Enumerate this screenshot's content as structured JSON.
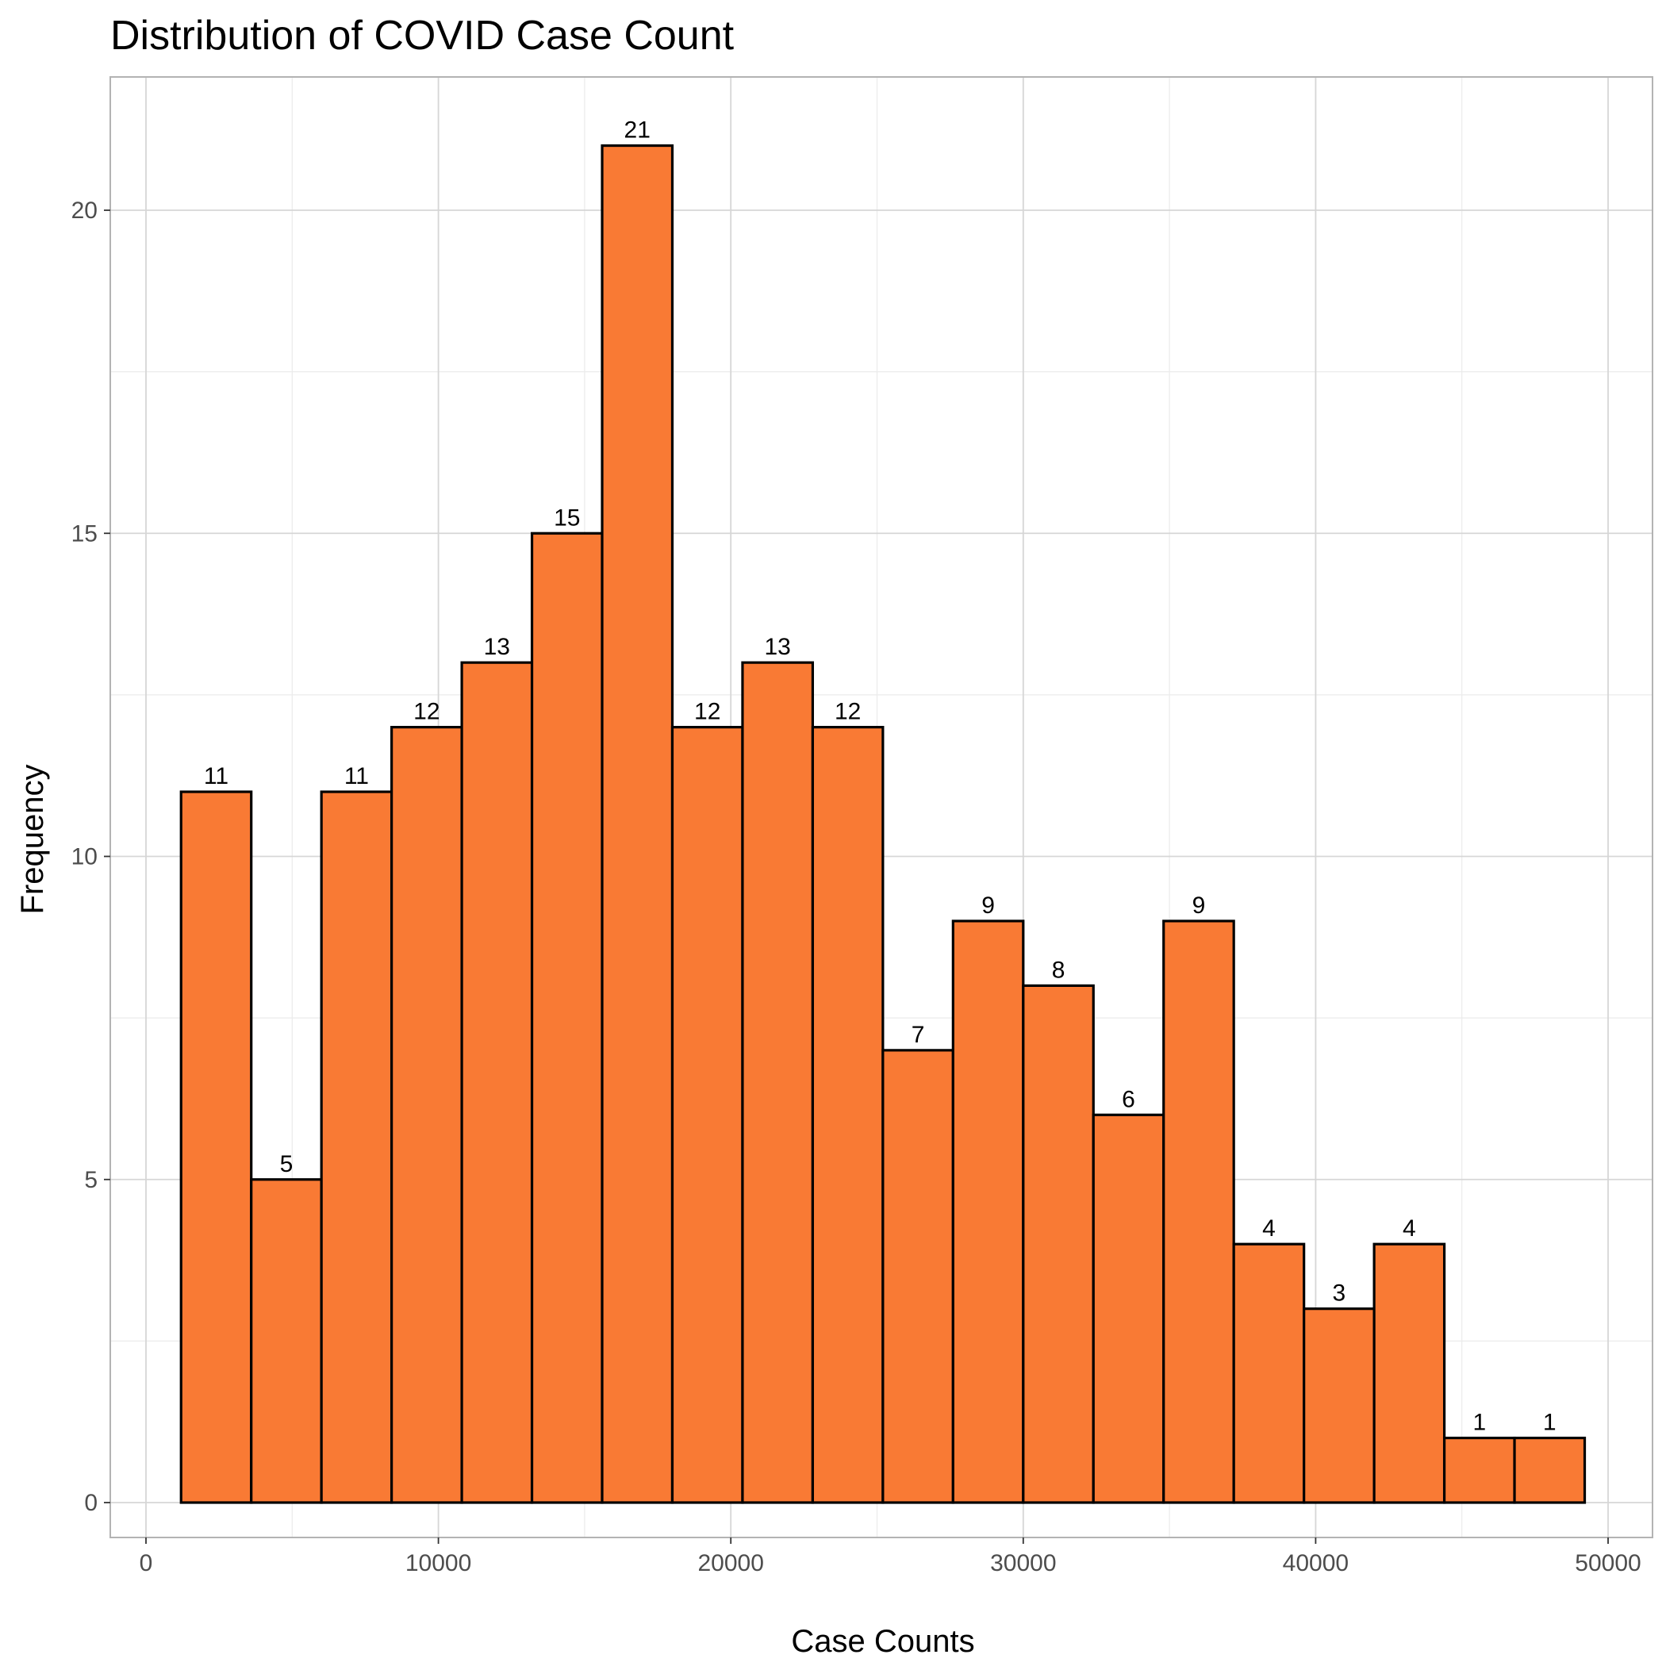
{
  "chart_data": {
    "type": "bar",
    "subtype": "histogram",
    "title": "Distribution of COVID Case Count",
    "xlabel": "Case Counts",
    "ylabel": "Frequency",
    "xlim": [
      -1200,
      51600
    ],
    "ylim": [
      -1,
      22
    ],
    "x_ticks": [
      0,
      10000,
      20000,
      30000,
      40000,
      50000
    ],
    "x_tick_labels": [
      "0",
      "10000",
      "20000",
      "30000",
      "40000",
      "50000"
    ],
    "y_ticks": [
      0,
      5,
      10,
      15,
      20
    ],
    "y_tick_labels": [
      "0",
      "5",
      "10",
      "15",
      "20"
    ],
    "bin_edges": [
      1200,
      3600,
      6000,
      8400,
      10800,
      13200,
      15600,
      18000,
      20400,
      22800,
      25200,
      27600,
      30000,
      32400,
      34800,
      37200,
      39600,
      42000,
      44400,
      46800,
      49200
    ],
    "values": [
      11,
      5,
      11,
      12,
      13,
      15,
      21,
      12,
      13,
      12,
      7,
      9,
      8,
      6,
      9,
      4,
      3,
      4,
      1,
      1
    ],
    "data_labels": [
      "11",
      "5",
      "11",
      "12",
      "13",
      "15",
      "21",
      "12",
      "13",
      "12",
      "7",
      "9",
      "8",
      "6",
      "9",
      "4",
      "3",
      "4",
      "1",
      "1"
    ],
    "grid": true,
    "colors": {
      "bar_fill": "#f97a34",
      "bar_outline": "#000000",
      "grid_major": "#d6d6d6",
      "grid_minor": "#ebebeb",
      "panel_border": "#b3b3b3",
      "tick_text": "#4d4d4d"
    }
  }
}
